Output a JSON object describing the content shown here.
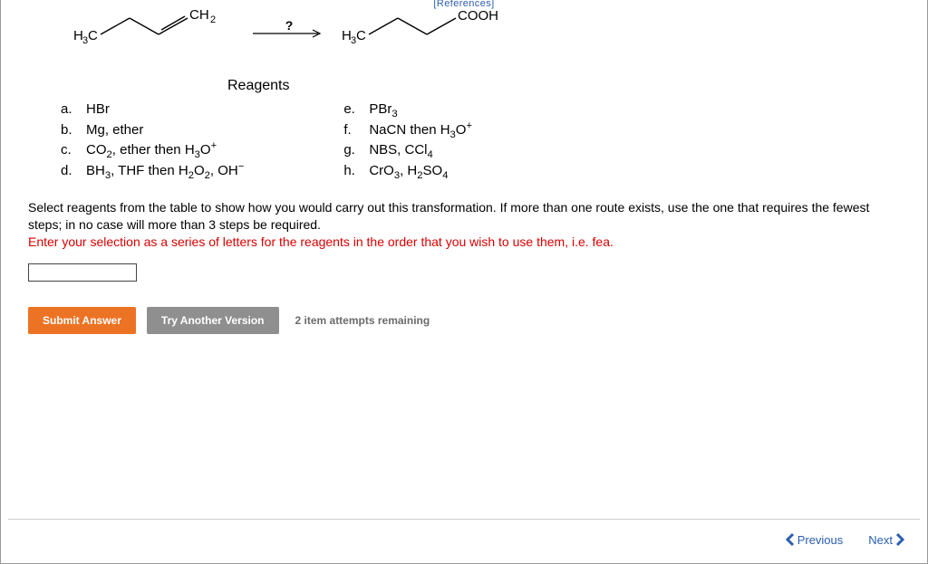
{
  "header": {
    "references_label": "[References]"
  },
  "reaction": {
    "arrow_label": "?",
    "reactant": {
      "left_label": "H₃C",
      "right_label": "CH₂"
    },
    "product": {
      "left_label": "H₃C",
      "right_label": "COOH"
    }
  },
  "reagents": {
    "title": "Reagents",
    "left": [
      {
        "letter": "a.",
        "html": "HBr"
      },
      {
        "letter": "b.",
        "html": "Mg, ether"
      },
      {
        "letter": "c.",
        "html": "CO<sub>2</sub>, ether then H<sub>3</sub>O<sup>+</sup>"
      },
      {
        "letter": "d.",
        "html": "BH<sub>3</sub>, THF then H<sub>2</sub>O<sub>2</sub>, OH<sup>−</sup>"
      }
    ],
    "right": [
      {
        "letter": "e.",
        "html": "PBr<sub>3</sub>"
      },
      {
        "letter": "f.",
        "html": "NaCN then H<sub>3</sub>O<sup>+</sup>"
      },
      {
        "letter": "g.",
        "html": "NBS, CCl<sub>4</sub>"
      },
      {
        "letter": "h.",
        "html": "CrO<sub>3</sub>, H<sub>2</sub>SO<sub>4</sub>"
      }
    ]
  },
  "instructions": {
    "line1": "Select reagents from the table to show how you would carry out this transformation. If more than one route exists, use the one that requires the fewest steps; in no case will more than 3 steps be required.",
    "line2": "Enter your selection as a series of letters for the reagents in the order that you wish to use them, i.e. fea."
  },
  "answer": {
    "value": ""
  },
  "buttons": {
    "submit": "Submit Answer",
    "try_another": "Try Another Version",
    "attempts": "2 item attempts remaining"
  },
  "footer": {
    "previous": "Previous",
    "next": "Next"
  },
  "colors": {
    "orange": "#ed7324",
    "gray_btn": "#8f8f8f",
    "link_blue": "#2a5db0",
    "red": "#d90000"
  }
}
